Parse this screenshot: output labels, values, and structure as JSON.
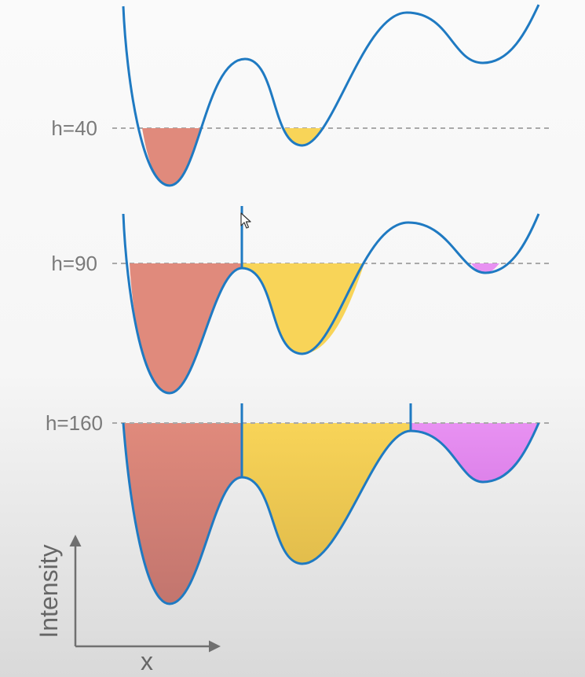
{
  "colors": {
    "curve": "#1f7ac2",
    "basin_left": "#e08a7c",
    "basin_middle": "#f8d458",
    "basin_right": "#e58ef0",
    "threshold_line": "#a9a9a9",
    "axis": "#707070",
    "label": "#7a7a7a"
  },
  "panels": [
    {
      "label": "h=40",
      "level": 40,
      "dams": []
    },
    {
      "label": "h=90",
      "level": 90,
      "dams": [
        "left-middle"
      ]
    },
    {
      "label": "h=160",
      "level": 160,
      "dams": [
        "left-middle",
        "middle-right"
      ]
    }
  ],
  "axes": {
    "y_label": "Intensity",
    "x_label": "x"
  },
  "icons": {
    "cursor": "mouse-pointer-icon"
  }
}
